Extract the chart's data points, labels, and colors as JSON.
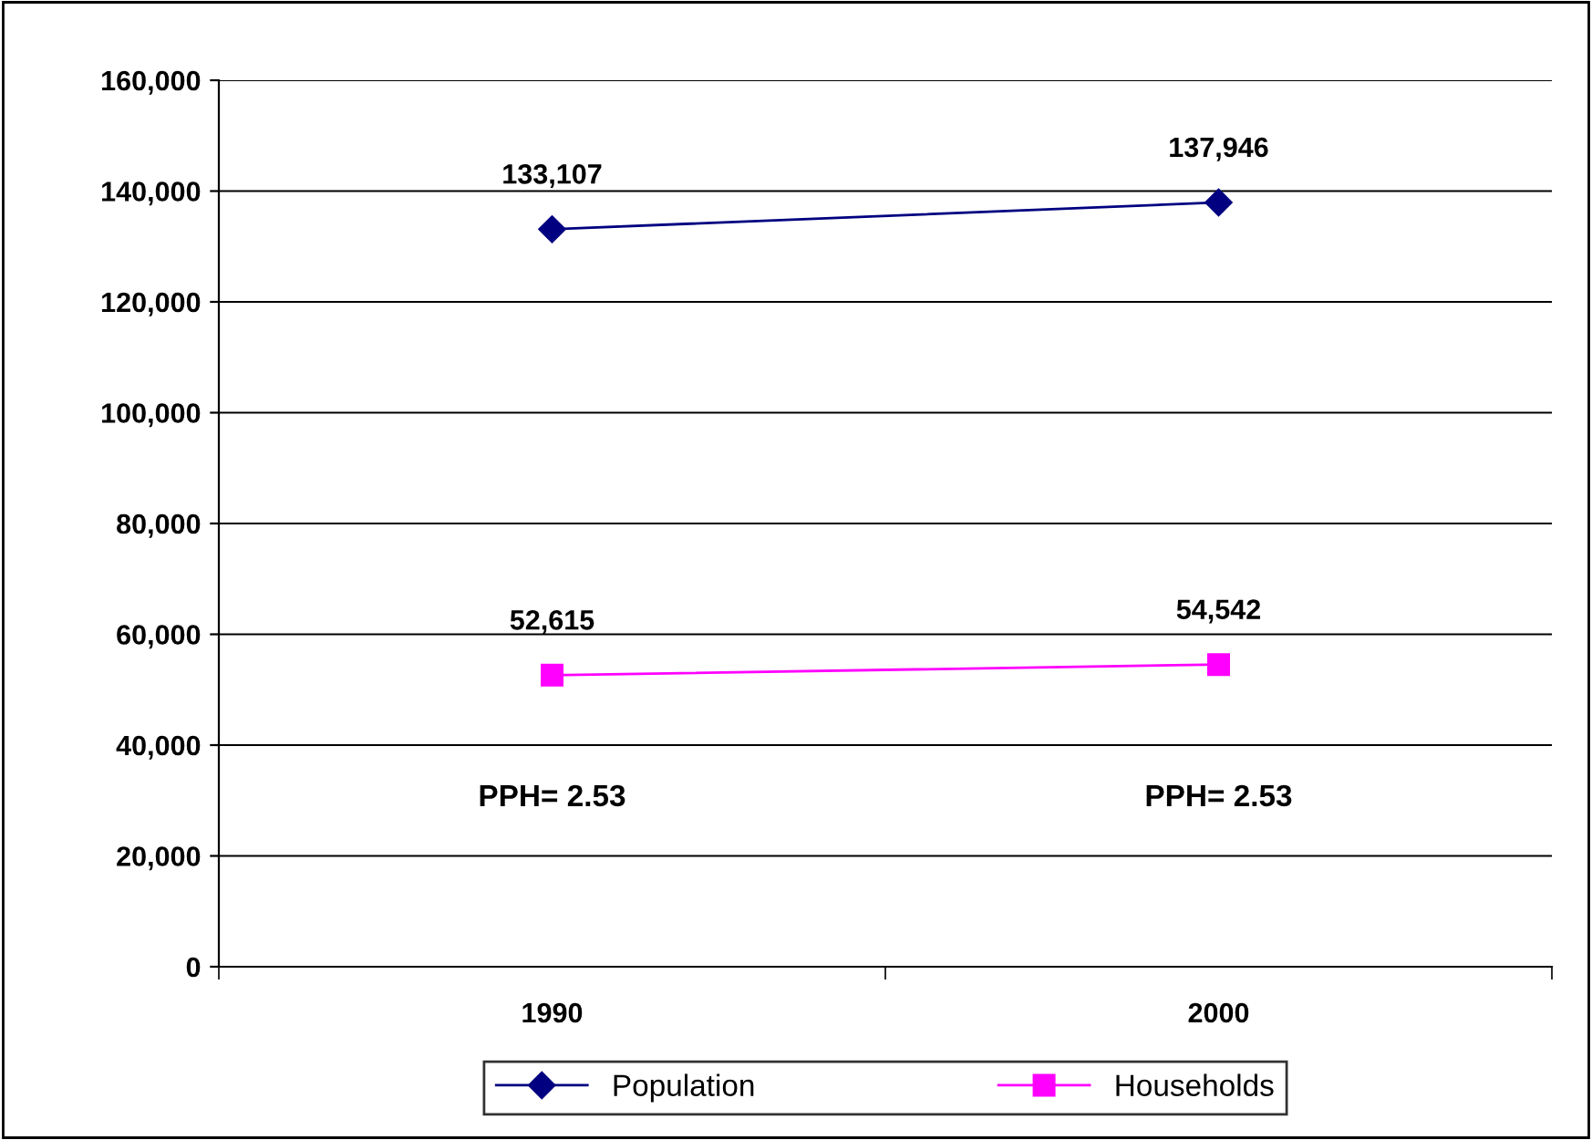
{
  "chart_data": {
    "type": "line",
    "categories": [
      "1990",
      "2000"
    ],
    "series": [
      {
        "name": "Population",
        "color": "#000080",
        "values": [
          133107,
          137946
        ],
        "value_labels": [
          "133,107",
          "137,946"
        ],
        "marker": "diamond"
      },
      {
        "name": "Households",
        "color": "#ff00ff",
        "values": [
          52615,
          54542
        ],
        "value_labels": [
          "52,615",
          "54,542"
        ],
        "marker": "square"
      }
    ],
    "ylim": [
      0,
      160000
    ],
    "yticks": [
      {
        "value": 0,
        "label": "0"
      },
      {
        "value": 20000,
        "label": "20,000"
      },
      {
        "value": 40000,
        "label": "40,000"
      },
      {
        "value": 60000,
        "label": "60,000"
      },
      {
        "value": 80000,
        "label": "80,000"
      },
      {
        "value": 100000,
        "label": "100,000"
      },
      {
        "value": 120000,
        "label": "120,000"
      },
      {
        "value": 140000,
        "label": "140,000"
      },
      {
        "value": 160000,
        "label": "160,000"
      }
    ],
    "grid": "y",
    "legend": "bottom",
    "annotations": [
      "PPH= 2.53",
      "PPH= 2.53"
    ]
  }
}
